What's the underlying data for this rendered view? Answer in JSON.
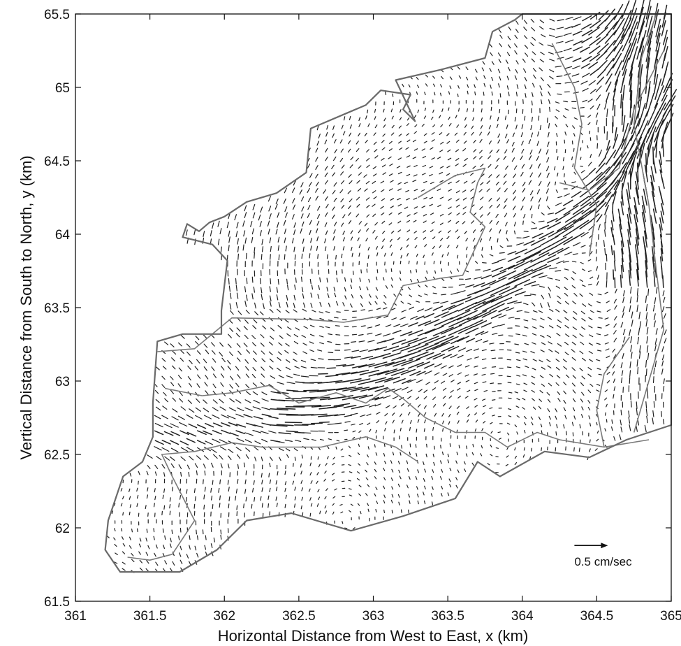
{
  "chart_data": {
    "type": "quiver",
    "xlabel": "Horizontal Distance from West to East, x (km)",
    "ylabel": "Vertical Distance from South to North, y (km)",
    "xlim": [
      361,
      365
    ],
    "ylim": [
      61.5,
      65.5
    ],
    "x_ticks": [
      "361",
      "361.5",
      "362",
      "362.5",
      "363",
      "363.5",
      "364",
      "364.5",
      "365"
    ],
    "y_ticks": [
      "61.5",
      "62",
      "62.5",
      "63",
      "63.5",
      "64",
      "64.5",
      "65",
      "65.5"
    ],
    "grid": false,
    "scale_arrow": {
      "label": "0.5 cm/sec",
      "speed_cm_s": 0.5,
      "x": 364.35,
      "y": 61.88
    },
    "domain_outline": [
      [
        361.3,
        61.7
      ],
      [
        361.2,
        61.85
      ],
      [
        361.22,
        62.05
      ],
      [
        361.32,
        62.35
      ],
      [
        361.45,
        62.45
      ],
      [
        361.52,
        62.62
      ],
      [
        361.52,
        62.85
      ],
      [
        361.55,
        63.27
      ],
      [
        361.72,
        63.32
      ],
      [
        361.98,
        63.32
      ],
      [
        361.98,
        63.48
      ],
      [
        362.02,
        63.82
      ],
      [
        361.92,
        63.93
      ],
      [
        361.72,
        63.98
      ],
      [
        361.75,
        64.07
      ],
      [
        361.83,
        64.02
      ],
      [
        361.9,
        64.08
      ],
      [
        362.0,
        64.12
      ],
      [
        362.15,
        64.22
      ],
      [
        362.35,
        64.28
      ],
      [
        362.55,
        64.42
      ],
      [
        362.58,
        64.72
      ],
      [
        362.95,
        64.88
      ],
      [
        363.05,
        64.98
      ],
      [
        363.25,
        64.95
      ],
      [
        363.2,
        64.85
      ],
      [
        363.28,
        64.77
      ],
      [
        363.15,
        65.05
      ],
      [
        363.45,
        65.12
      ],
      [
        363.75,
        65.2
      ],
      [
        363.8,
        65.38
      ],
      [
        363.95,
        65.46
      ],
      [
        364.0,
        65.5
      ],
      [
        365.0,
        65.5
      ],
      [
        365.0,
        62.7
      ],
      [
        364.7,
        62.6
      ],
      [
        364.45,
        62.48
      ],
      [
        364.15,
        62.52
      ],
      [
        363.85,
        62.35
      ],
      [
        363.7,
        62.45
      ],
      [
        363.55,
        62.2
      ],
      [
        363.2,
        62.08
      ],
      [
        362.85,
        61.98
      ],
      [
        362.45,
        62.1
      ],
      [
        362.15,
        62.05
      ],
      [
        361.95,
        61.85
      ],
      [
        361.7,
        61.7
      ],
      [
        361.3,
        61.7
      ]
    ],
    "interior_contours": [
      [
        [
          361.55,
          63.2
        ],
        [
          361.8,
          63.22
        ],
        [
          362.05,
          63.43
        ],
        [
          362.55,
          63.42
        ],
        [
          362.8,
          63.4
        ],
        [
          363.1,
          63.45
        ],
        [
          363.2,
          63.65
        ],
        [
          363.45,
          63.7
        ],
        [
          363.6,
          63.72
        ],
        [
          363.75,
          64.05
        ],
        [
          363.65,
          64.15
        ],
        [
          363.7,
          64.35
        ],
        [
          363.75,
          64.45
        ],
        [
          363.55,
          64.4
        ],
        [
          363.3,
          64.25
        ]
      ],
      [
        [
          361.6,
          62.95
        ],
        [
          361.85,
          62.9
        ],
        [
          362.05,
          62.92
        ],
        [
          362.3,
          62.97
        ],
        [
          362.5,
          62.85
        ],
        [
          362.75,
          62.92
        ],
        [
          362.95,
          62.85
        ],
        [
          363.1,
          62.95
        ],
        [
          363.2,
          62.88
        ],
        [
          363.35,
          62.75
        ],
        [
          363.55,
          62.65
        ],
        [
          363.75,
          62.65
        ],
        [
          363.9,
          62.55
        ],
        [
          364.1,
          62.65
        ],
        [
          364.25,
          62.6
        ],
        [
          364.55,
          62.55
        ],
        [
          364.85,
          62.6
        ]
      ],
      [
        [
          361.35,
          61.8
        ],
        [
          361.5,
          61.78
        ],
        [
          361.65,
          61.82
        ],
        [
          361.8,
          62.05
        ],
        [
          361.65,
          62.35
        ],
        [
          361.58,
          62.5
        ],
        [
          361.8,
          62.52
        ],
        [
          362.05,
          62.58
        ],
        [
          362.25,
          62.55
        ],
        [
          362.65,
          62.55
        ],
        [
          362.95,
          62.62
        ],
        [
          363.15,
          62.55
        ],
        [
          363.3,
          62.45
        ]
      ],
      [
        [
          364.25,
          64.35
        ],
        [
          364.45,
          64.3
        ],
        [
          364.65,
          64.45
        ],
        [
          364.75,
          64.85
        ],
        [
          364.85,
          65.05
        ],
        [
          364.95,
          65.25
        ]
      ],
      [
        [
          364.75,
          62.65
        ],
        [
          364.85,
          63.0
        ],
        [
          364.95,
          63.35
        ],
        [
          364.9,
          63.75
        ],
        [
          364.85,
          64.2
        ],
        [
          364.75,
          64.75
        ],
        [
          364.8,
          65.2
        ],
        [
          364.9,
          65.5
        ]
      ],
      [
        [
          364.55,
          62.55
        ],
        [
          364.5,
          62.8
        ],
        [
          364.55,
          63.05
        ],
        [
          364.72,
          63.3
        ]
      ],
      [
        [
          364.2,
          65.3
        ],
        [
          364.35,
          65.0
        ],
        [
          364.4,
          64.75
        ],
        [
          364.35,
          64.45
        ],
        [
          364.5,
          64.2
        ],
        [
          364.45,
          63.85
        ]
      ]
    ]
  }
}
